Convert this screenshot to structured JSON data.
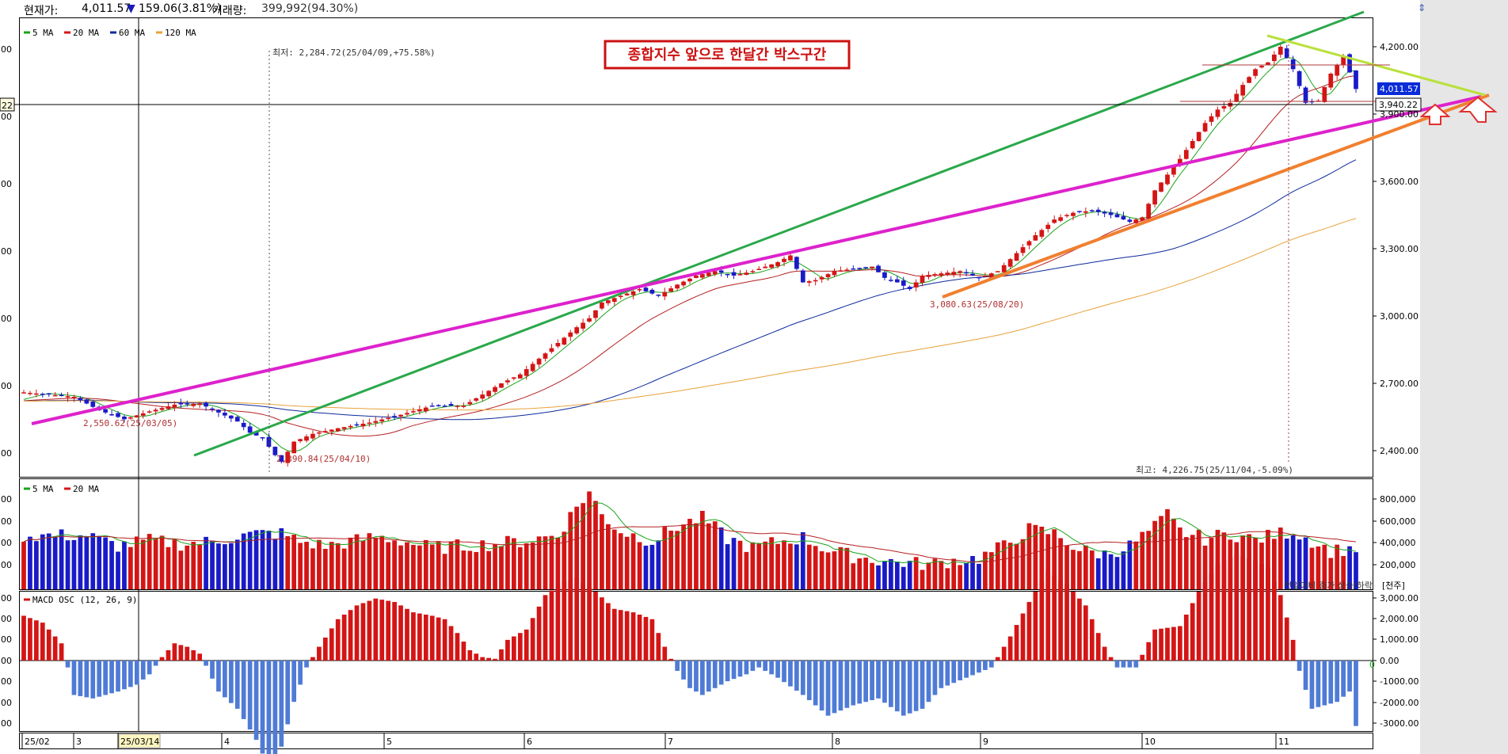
{
  "header": {
    "price_label": "현재가: ",
    "price": "4,011.57",
    "change_icon": "down-triangle-icon",
    "change": "159.06(3.81%)",
    "volume_label": "거래량: ",
    "volume": "399,992(94.30%)"
  },
  "legend_price": [
    {
      "label": "5 MA",
      "color": "#19a41b"
    },
    {
      "label": "20 MA",
      "color": "#d41515"
    },
    {
      "label": "60 MA",
      "color": "#0c2a9c"
    },
    {
      "label": "120 MA",
      "color": "#e8a23a"
    }
  ],
  "legend_volume": [
    {
      "label": "5 MA",
      "color": "#19a41b"
    },
    {
      "label": "20 MA",
      "color": "#d41515"
    }
  ],
  "legend_macd": {
    "label": "MACD OSC (12, 26, 9)",
    "color": "#d41515"
  },
  "annotation_box": "종합지수 앞으로 한달간 박스구간",
  "price_axis_labels": [
    "4,200.00",
    "3,900.00",
    "3,600.00",
    "3,300.00",
    "3,000.00",
    "2,700.00",
    "2,400.00"
  ],
  "volume_axis_labels": [
    "800,000",
    "600,000",
    "400,000",
    "200,000"
  ],
  "volume_unit": "[천주]",
  "volume_right_label": "전일대비 증가 상승/하락",
  "macd_axis_labels": [
    "3,000.00",
    "2,000.00",
    "1,000.00",
    "0.00",
    "-1000.00",
    "-2000.00",
    "-3000.00"
  ],
  "macd_zero_label": "0",
  "left_axis_labels": [
    "00",
    "00",
    "00",
    "00",
    "00",
    "00",
    "00"
  ],
  "left_axis_volume_labels": [
    "00",
    "00",
    "00",
    "00"
  ],
  "left_axis_macd_labels": [
    "00",
    "00",
    "00",
    "00",
    "00",
    "00",
    "00"
  ],
  "crosshair_label": "22",
  "price_tags": {
    "current": "4,011.57",
    "crosshair": "3,940.22"
  },
  "x_axis_labels": [
    "25/02",
    "3",
    "25/03/14",
    "4",
    "5",
    "6",
    "7",
    "8",
    "9",
    "10",
    "11"
  ],
  "price_annotations": {
    "min_top": "최저: 2,284.72(25/04/09,+75.58%)",
    "low_a": "2,550.62(25/03/05)",
    "low_b": "2,390.84(25/04/10)",
    "low_c": "3,080.63(25/08/20)",
    "max": "최고: 4,226.75(25/11/04,-5.09%)"
  },
  "arrow_icons": [
    "up-arrow-icon",
    "up-arrow-icon"
  ],
  "chart_data": {
    "type": "candlestick",
    "title": "",
    "price_range": [
      2330,
      4330
    ],
    "series": [
      {
        "name": "5 MA",
        "color": "#19a41b"
      },
      {
        "name": "20 MA",
        "color": "#d41515"
      },
      {
        "name": "60 MA",
        "color": "#0c2a9c"
      },
      {
        "name": "120 MA",
        "color": "#e8a23a"
      }
    ],
    "milestones": [
      {
        "date": "25/03/05",
        "value": 2550.62
      },
      {
        "date": "25/04/10",
        "value": 2390.84
      },
      {
        "date": "25/08/20",
        "value": 3080.63
      },
      {
        "date": "25/11/04",
        "value": 4226.75
      }
    ],
    "current_price": 4011.57,
    "crosshair_price": 3940.22,
    "close_keypoints": [
      [
        0,
        2660
      ],
      [
        8,
        2640
      ],
      [
        12,
        2580
      ],
      [
        16,
        2540
      ],
      [
        20,
        2575
      ],
      [
        24,
        2605
      ],
      [
        28,
        2610
      ],
      [
        31,
        2570
      ],
      [
        34,
        2530
      ],
      [
        36,
        2480
      ],
      [
        38,
        2455
      ],
      [
        40,
        2380
      ],
      [
        41,
        2350
      ],
      [
        43,
        2440
      ],
      [
        46,
        2475
      ],
      [
        50,
        2500
      ],
      [
        55,
        2525
      ],
      [
        60,
        2560
      ],
      [
        65,
        2600
      ],
      [
        70,
        2600
      ],
      [
        73,
        2650
      ],
      [
        76,
        2700
      ],
      [
        79,
        2740
      ],
      [
        82,
        2810
      ],
      [
        85,
        2880
      ],
      [
        88,
        2950
      ],
      [
        90,
        2990
      ],
      [
        92,
        3060
      ],
      [
        95,
        3090
      ],
      [
        98,
        3120
      ],
      [
        101,
        3090
      ],
      [
        104,
        3140
      ],
      [
        107,
        3180
      ],
      [
        110,
        3200
      ],
      [
        113,
        3180
      ],
      [
        116,
        3200
      ],
      [
        120,
        3240
      ],
      [
        122,
        3270
      ],
      [
        124,
        3150
      ],
      [
        126,
        3160
      ],
      [
        129,
        3200
      ],
      [
        132,
        3210
      ],
      [
        135,
        3220
      ],
      [
        137,
        3170
      ],
      [
        139,
        3150
      ],
      [
        141,
        3120
      ],
      [
        143,
        3180
      ],
      [
        146,
        3190
      ],
      [
        149,
        3200
      ],
      [
        152,
        3170
      ],
      [
        155,
        3200
      ],
      [
        158,
        3280
      ],
      [
        161,
        3360
      ],
      [
        164,
        3430
      ],
      [
        167,
        3460
      ],
      [
        170,
        3470
      ],
      [
        173,
        3450
      ],
      [
        176,
        3420
      ],
      [
        178,
        3440
      ],
      [
        180,
        3560
      ],
      [
        182,
        3630
      ],
      [
        184,
        3700
      ],
      [
        186,
        3780
      ],
      [
        188,
        3860
      ],
      [
        190,
        3920
      ],
      [
        192,
        3950
      ],
      [
        194,
        4030
      ],
      [
        196,
        4100
      ],
      [
        198,
        4130
      ],
      [
        200,
        4200
      ],
      [
        202,
        4100
      ],
      [
        204,
        3950
      ],
      [
        206,
        3960
      ],
      [
        208,
        4080
      ],
      [
        210,
        4160
      ],
      [
        212,
        4011.57
      ]
    ],
    "volume_range": [
      0,
      950000
    ],
    "volume_keypoints": [
      [
        0,
        520
      ],
      [
        10,
        520
      ],
      [
        15,
        420
      ],
      [
        20,
        470
      ],
      [
        25,
        440
      ],
      [
        30,
        460
      ],
      [
        35,
        520
      ],
      [
        38,
        540
      ],
      [
        41,
        540
      ],
      [
        44,
        460
      ],
      [
        48,
        420
      ],
      [
        52,
        460
      ],
      [
        56,
        510
      ],
      [
        60,
        470
      ],
      [
        65,
        400
      ],
      [
        70,
        420
      ],
      [
        75,
        440
      ],
      [
        80,
        470
      ],
      [
        85,
        530
      ],
      [
        88,
        800
      ],
      [
        90,
        940
      ],
      [
        92,
        720
      ],
      [
        95,
        560
      ],
      [
        100,
        470
      ],
      [
        104,
        610
      ],
      [
        108,
        690
      ],
      [
        112,
        490
      ],
      [
        116,
        400
      ],
      [
        120,
        460
      ],
      [
        124,
        500
      ],
      [
        128,
        380
      ],
      [
        132,
        320
      ],
      [
        136,
        280
      ],
      [
        140,
        260
      ],
      [
        144,
        240
      ],
      [
        148,
        280
      ],
      [
        152,
        300
      ],
      [
        156,
        420
      ],
      [
        160,
        580
      ],
      [
        164,
        540
      ],
      [
        168,
        380
      ],
      [
        172,
        340
      ],
      [
        176,
        420
      ],
      [
        180,
        600
      ],
      [
        182,
        720
      ],
      [
        184,
        560
      ],
      [
        188,
        490
      ],
      [
        192,
        540
      ],
      [
        196,
        480
      ],
      [
        200,
        540
      ],
      [
        202,
        560
      ],
      [
        205,
        470
      ],
      [
        208,
        370
      ],
      [
        212,
        400
      ]
    ],
    "volume_unit": "천주",
    "macd_range": [
      -3300,
      3300
    ],
    "macd_keypoints": [
      [
        0,
        1300
      ],
      [
        3,
        1100
      ],
      [
        6,
        500
      ],
      [
        7,
        -200
      ],
      [
        8,
        -1000
      ],
      [
        11,
        -1100
      ],
      [
        15,
        -900
      ],
      [
        18,
        -700
      ],
      [
        20,
        -400
      ],
      [
        22,
        100
      ],
      [
        24,
        500
      ],
      [
        26,
        400
      ],
      [
        28,
        200
      ],
      [
        29,
        -150
      ],
      [
        31,
        -900
      ],
      [
        34,
        -1400
      ],
      [
        37,
        -2300
      ],
      [
        39,
        -3100
      ],
      [
        41,
        -2500
      ],
      [
        43,
        -1200
      ],
      [
        45,
        -200
      ],
      [
        47,
        400
      ],
      [
        50,
        1200
      ],
      [
        53,
        1600
      ],
      [
        56,
        1800
      ],
      [
        59,
        1700
      ],
      [
        62,
        1400
      ],
      [
        65,
        1300
      ],
      [
        67,
        1200
      ],
      [
        69,
        800
      ],
      [
        71,
        300
      ],
      [
        73,
        100
      ],
      [
        75,
        50
      ],
      [
        77,
        600
      ],
      [
        80,
        900
      ],
      [
        83,
        1900
      ],
      [
        86,
        2300
      ],
      [
        88,
        2400
      ],
      [
        91,
        2000
      ],
      [
        94,
        1500
      ],
      [
        97,
        1400
      ],
      [
        100,
        1200
      ],
      [
        102,
        400
      ],
      [
        104,
        -300
      ],
      [
        106,
        -800
      ],
      [
        108,
        -1000
      ],
      [
        112,
        -600
      ],
      [
        115,
        -400
      ],
      [
        117,
        -200
      ],
      [
        120,
        -500
      ],
      [
        124,
        -1000
      ],
      [
        128,
        -1600
      ],
      [
        132,
        -1300
      ],
      [
        136,
        -1100
      ],
      [
        140,
        -1600
      ],
      [
        143,
        -1400
      ],
      [
        146,
        -800
      ],
      [
        150,
        -500
      ],
      [
        154,
        -200
      ],
      [
        157,
        700
      ],
      [
        160,
        1700
      ],
      [
        163,
        2600
      ],
      [
        166,
        2200
      ],
      [
        169,
        1600
      ],
      [
        172,
        400
      ],
      [
        174,
        -200
      ],
      [
        177,
        -200
      ],
      [
        180,
        900
      ],
      [
        184,
        1000
      ],
      [
        187,
        2000
      ],
      [
        190,
        2800
      ],
      [
        193,
        3100
      ],
      [
        196,
        2900
      ],
      [
        198,
        2700
      ],
      [
        200,
        1900
      ],
      [
        202,
        600
      ],
      [
        203,
        -300
      ],
      [
        205,
        -1400
      ],
      [
        207,
        -1300
      ],
      [
        209,
        -1200
      ],
      [
        211,
        -900
      ],
      [
        212,
        -1900
      ]
    ]
  }
}
